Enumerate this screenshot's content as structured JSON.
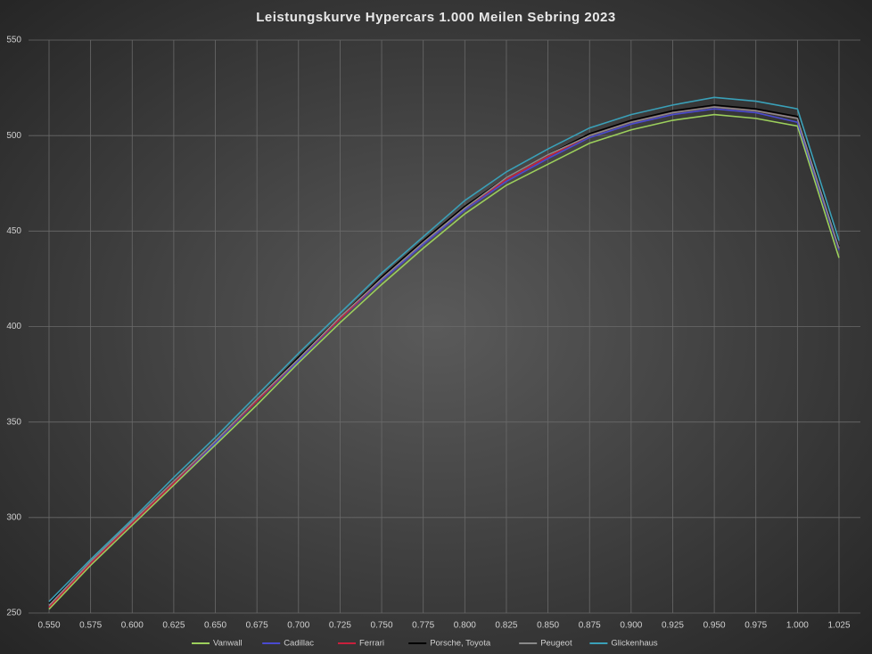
{
  "chart_data": {
    "type": "line",
    "title": "Leistungskurve Hypercars 1.000 Meilen Sebring 2023",
    "x": [
      0.55,
      0.575,
      0.6,
      0.625,
      0.65,
      0.675,
      0.7,
      0.725,
      0.75,
      0.775,
      0.8,
      0.825,
      0.85,
      0.875,
      0.9,
      0.925,
      0.95,
      0.975,
      1.0,
      1.025
    ],
    "series": [
      {
        "name": "Vanwall",
        "color": "#9ccf5c",
        "values": [
          252,
          275,
          296,
          317,
          338,
          359,
          381,
          402,
          422,
          441,
          459,
          474,
          485,
          496,
          503,
          508,
          511,
          509,
          505,
          436
        ]
      },
      {
        "name": "Cadillac",
        "color": "#4a4ad0",
        "values": [
          254,
          276,
          297,
          318,
          339,
          361,
          382,
          404,
          424,
          443,
          461,
          476,
          488,
          499,
          506,
          511,
          514,
          512,
          507,
          440
        ]
      },
      {
        "name": "Ferrari",
        "color": "#c8203c",
        "values": [
          253,
          276,
          297,
          318,
          340,
          361,
          383,
          404,
          425,
          444,
          462,
          477,
          489,
          500,
          507,
          512,
          515,
          513,
          509,
          441
        ]
      },
      {
        "name": "Porsche, Toyota",
        "color": "#000000",
        "values": [
          255,
          277,
          298,
          319,
          340,
          362,
          384,
          405,
          426,
          445,
          463,
          478,
          490,
          501,
          508,
          513,
          516,
          514,
          510,
          442
        ]
      },
      {
        "name": "Peugeot",
        "color": "#8a8a8a",
        "values": [
          254,
          277,
          298,
          319,
          340,
          362,
          383,
          405,
          425,
          444,
          462,
          478,
          490,
          500,
          507,
          512,
          515,
          513,
          509,
          441
        ]
      },
      {
        "name": "Glickenhaus",
        "color": "#3aa0b8",
        "values": [
          256,
          278,
          299,
          321,
          342,
          364,
          386,
          407,
          428,
          447,
          466,
          481,
          493,
          504,
          511,
          516,
          520,
          518,
          514,
          445
        ]
      }
    ],
    "xlim": [
      0.55,
      1.025
    ],
    "xticks": [
      {
        "value": 0.55,
        "label": "0.550"
      },
      {
        "value": 0.575,
        "label": "0.575"
      },
      {
        "value": 0.6,
        "label": "0.600"
      },
      {
        "value": 0.625,
        "label": "0.625"
      },
      {
        "value": 0.65,
        "label": "0.650"
      },
      {
        "value": 0.675,
        "label": "0.675"
      },
      {
        "value": 0.7,
        "label": "0.700"
      },
      {
        "value": 0.725,
        "label": "0.725"
      },
      {
        "value": 0.75,
        "label": "0.750"
      },
      {
        "value": 0.775,
        "label": "0.775"
      },
      {
        "value": 0.8,
        "label": "0.800"
      },
      {
        "value": 0.825,
        "label": "0.825"
      },
      {
        "value": 0.85,
        "label": "0.850"
      },
      {
        "value": 0.875,
        "label": "0.875"
      },
      {
        "value": 0.9,
        "label": "0.900"
      },
      {
        "value": 0.925,
        "label": "0.925"
      },
      {
        "value": 0.95,
        "label": "0.950"
      },
      {
        "value": 0.975,
        "label": "0.975"
      },
      {
        "value": 1.0,
        "label": "1.000"
      },
      {
        "value": 1.025,
        "label": "1.025"
      }
    ],
    "ylim": [
      250,
      550
    ],
    "yticks": [
      250,
      300,
      350,
      400,
      450,
      500,
      550
    ],
    "grid": true,
    "legend": "bottom"
  }
}
